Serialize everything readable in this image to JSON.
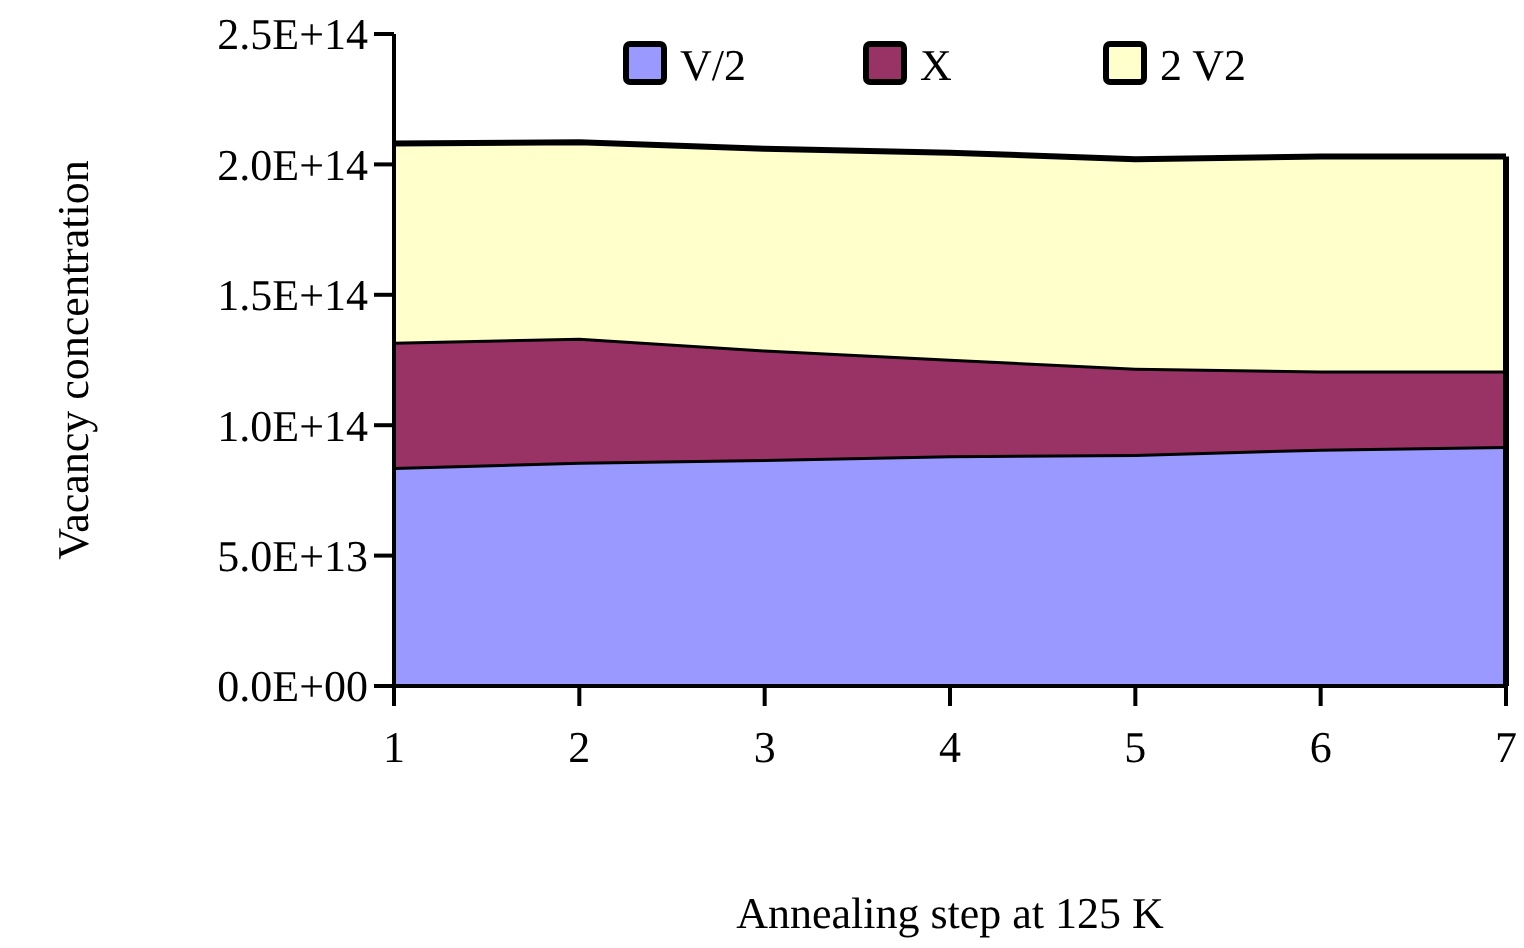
{
  "chart_data": {
    "type": "area",
    "stacked": true,
    "xlabel": "Annealing step at 125 K",
    "ylabel": "Vacancy concentration",
    "x": [
      1,
      2,
      3,
      4,
      5,
      6,
      7
    ],
    "series": [
      {
        "name": "V/2",
        "color": "#9999ff",
        "values": [
          84000000000000.0,
          86000000000000.0,
          87000000000000.0,
          88500000000000.0,
          89000000000000.0,
          91000000000000.0,
          92000000000000.0
        ]
      },
      {
        "name": "X",
        "color": "#993366",
        "values": [
          48000000000000.0,
          47500000000000.0,
          42000000000000.0,
          37000000000000.0,
          33000000000000.0,
          30000000000000.0,
          29000000000000.0
        ]
      },
      {
        "name": "2 V2",
        "color": "#ffffcc",
        "values": [
          76000000000000.0,
          75000000000000.0,
          77000000000000.0,
          79000000000000.0,
          80000000000000.0,
          82000000000000.0,
          82000000000000.0
        ]
      }
    ],
    "xlim": [
      1,
      7
    ],
    "xticks": [
      1,
      2,
      3,
      4,
      5,
      6,
      7
    ],
    "ylim": [
      0,
      250000000000000.0
    ],
    "yticks": [
      {
        "value": 0,
        "label": "0.0E+00"
      },
      {
        "value": 50000000000000.0,
        "label": "5.0E+13"
      },
      {
        "value": 100000000000000.0,
        "label": "1.0E+14"
      },
      {
        "value": 150000000000000.0,
        "label": "1.5E+14"
      },
      {
        "value": 200000000000000.0,
        "label": "2.0E+14"
      },
      {
        "value": 250000000000000.0,
        "label": "2.5E+14"
      }
    ],
    "legend": "top",
    "grid": false
  }
}
